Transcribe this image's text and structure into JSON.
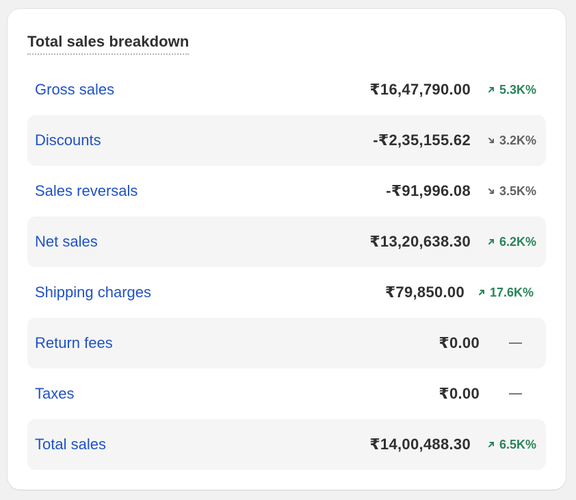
{
  "card": {
    "title": "Total sales breakdown"
  },
  "rows": [
    {
      "label": "Gross sales",
      "value": "₹16,47,790.00",
      "change": "5.3K%",
      "direction": "up"
    },
    {
      "label": "Discounts",
      "value": "-₹2,35,155.62",
      "change": "3.2K%",
      "direction": "down"
    },
    {
      "label": "Sales reversals",
      "value": "-₹91,996.08",
      "change": "3.5K%",
      "direction": "down"
    },
    {
      "label": "Net sales",
      "value": "₹13,20,638.30",
      "change": "6.2K%",
      "direction": "up"
    },
    {
      "label": "Shipping charges",
      "value": "₹79,850.00",
      "change": "17.6K%",
      "direction": "up"
    },
    {
      "label": "Return fees",
      "value": "₹0.00",
      "change": null,
      "direction": "none"
    },
    {
      "label": "Taxes",
      "value": "₹0.00",
      "change": null,
      "direction": "none"
    },
    {
      "label": "Total sales",
      "value": "₹14,00,488.30",
      "change": "6.5K%",
      "direction": "up"
    }
  ],
  "icons": {
    "up": "arrow-up-right-icon",
    "down": "arrow-down-right-icon",
    "none": "dash-icon"
  },
  "colors": {
    "link": "#2052c4",
    "positive": "#29845a",
    "neutral": "#616161",
    "row_shade": "#f5f5f5"
  }
}
